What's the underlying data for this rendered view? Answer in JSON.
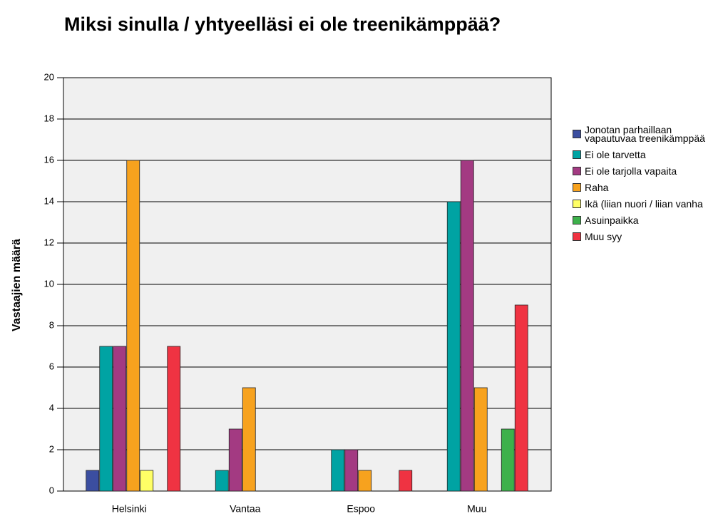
{
  "chart_data": {
    "type": "bar",
    "title": "Miksi sinulla / yhtyeelläsi ei ole treenikämppää?",
    "y_label": "Vastaajien määrä",
    "categories": [
      "Helsinki",
      "Vantaa",
      "Espoo",
      "Muu"
    ],
    "series": [
      {
        "name": "Jonotan parhaillaan vapautuvaa treenikämppää",
        "color": "#3b4ea0",
        "values": [
          1,
          0,
          0,
          0
        ]
      },
      {
        "name": "Ei ole tarvetta",
        "color": "#00a3a3",
        "values": [
          7,
          1,
          2,
          14
        ]
      },
      {
        "name": "Ei ole tarjolla vapaita",
        "color": "#a33a82",
        "values": [
          7,
          3,
          2,
          16
        ]
      },
      {
        "name": "Raha",
        "color": "#f7a21e",
        "values": [
          16,
          5,
          1,
          5
        ]
      },
      {
        "name": "Ikä (liian nuori / liian vanha",
        "color": "#ffff66",
        "values": [
          1,
          0,
          0,
          0
        ]
      },
      {
        "name": "Asuinpaikka",
        "color": "#3db14b",
        "values": [
          0,
          0,
          0,
          3
        ]
      },
      {
        "name": "Muu syy",
        "color": "#ef3342",
        "values": [
          7,
          0,
          1,
          9
        ]
      }
    ],
    "ylim": [
      0,
      20
    ],
    "yticks": [
      0,
      2,
      4,
      6,
      8,
      10,
      12,
      14,
      16,
      18,
      20
    ],
    "grid": true,
    "legend": "right"
  }
}
